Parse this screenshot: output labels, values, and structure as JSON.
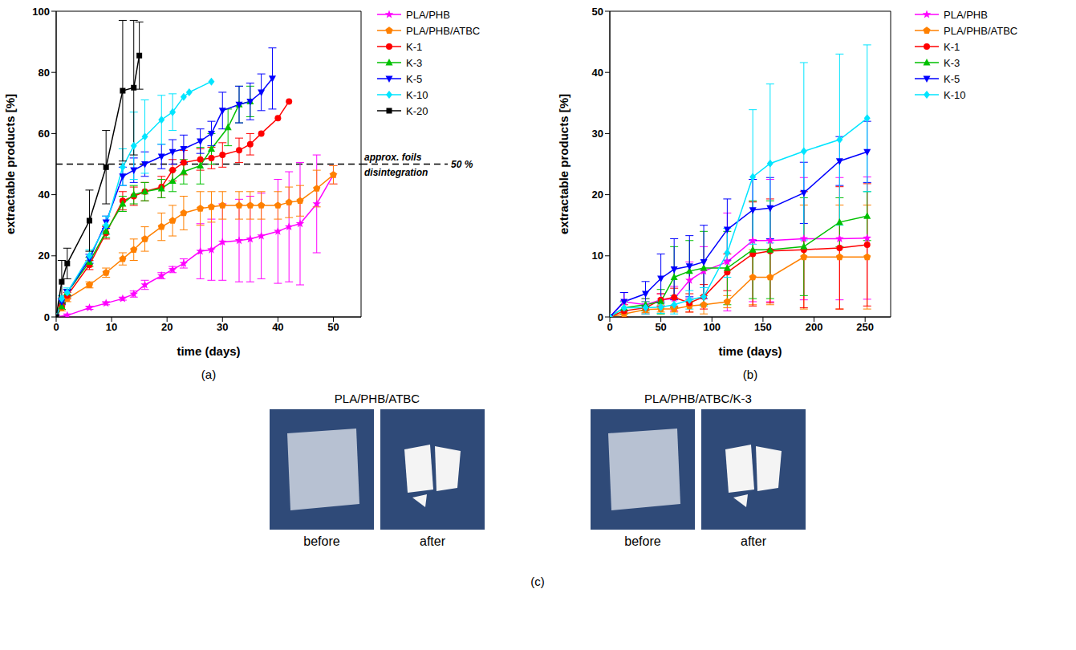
{
  "chart_data": [
    {
      "type": "line",
      "panel_label": "(a)",
      "x_label": "time (days)",
      "y_label": "extractable products [%]",
      "xlim": [
        0,
        55
      ],
      "xticks": [
        0,
        10,
        20,
        30,
        40,
        50
      ],
      "ylim": [
        0,
        100
      ],
      "yticks": [
        0,
        20,
        40,
        60,
        80,
        100
      ],
      "grid": false,
      "legend": "right",
      "reference_line": {
        "y": 50,
        "line_style": "dashed",
        "label": "approx. foils disintegration",
        "value_label": "50 %"
      },
      "series": [
        {
          "name": "PLA/PHB",
          "color": "#ff00ff",
          "marker": "star",
          "x": [
            0,
            2,
            6,
            9,
            12,
            14,
            16,
            19,
            21,
            23,
            26,
            28,
            30,
            33,
            35,
            37,
            40,
            42,
            44,
            47,
            50
          ],
          "values": [
            0,
            0.5,
            3,
            4.5,
            6,
            7.5,
            10.5,
            13.5,
            15.5,
            17.5,
            21.5,
            22,
            24.5,
            25,
            25.5,
            26.5,
            28,
            29.5,
            30.5,
            37,
            46.5
          ],
          "errors": [
            0,
            0.5,
            0.5,
            0.5,
            0.5,
            1,
            1.5,
            1,
            1,
            1.5,
            9,
            10,
            12.5,
            13.5,
            14,
            14,
            17,
            18,
            20,
            16,
            3
          ]
        },
        {
          "name": "PLA/PHB/ATBC",
          "color": "#ff8000",
          "marker": "pentagon",
          "x": [
            0,
            1,
            2,
            6,
            9,
            12,
            14,
            16,
            19,
            21,
            23,
            26,
            28,
            30,
            33,
            35,
            37,
            40,
            42,
            44,
            47,
            50
          ],
          "values": [
            0,
            3,
            6,
            10.5,
            14.5,
            19,
            22,
            25.5,
            29.5,
            31.5,
            34,
            35.5,
            36,
            36.5,
            36.5,
            36.5,
            36.5,
            36.5,
            37.5,
            38,
            42,
            46.5
          ],
          "errors": [
            0,
            1,
            1,
            1,
            1.5,
            2,
            3.5,
            4,
            4.5,
            5,
            5.5,
            5.5,
            5,
            4.5,
            4.5,
            4.5,
            4.5,
            4.5,
            5,
            5,
            6,
            3
          ]
        },
        {
          "name": "K-1",
          "color": "#ff0000",
          "marker": "circle",
          "x": [
            0,
            1,
            2,
            6,
            9,
            12,
            14,
            16,
            19,
            21,
            23,
            26,
            28,
            30,
            33,
            35,
            37,
            40,
            42
          ],
          "values": [
            0,
            3.5,
            7,
            17,
            27.5,
            38,
            39.5,
            41,
            42.5,
            48,
            50.5,
            51.5,
            52,
            53,
            54.5,
            56.5,
            60,
            65,
            70.5
          ],
          "errors": [
            0,
            1,
            1,
            1.5,
            2,
            3,
            3,
            3,
            3.5,
            3.5,
            4,
            3.5,
            3.5,
            4,
            4,
            3.5,
            0,
            0,
            0
          ]
        },
        {
          "name": "K-3",
          "color": "#00c000",
          "marker": "triangle",
          "x": [
            0,
            1,
            2,
            6,
            9,
            12,
            14,
            16,
            19,
            21,
            23,
            26,
            28,
            31,
            33,
            35
          ],
          "values": [
            0,
            3.5,
            8,
            18,
            28,
            37,
            40,
            41,
            42,
            44.5,
            47.5,
            49.5,
            55,
            62,
            69.5,
            70.5
          ],
          "errors": [
            0,
            1,
            1,
            1.5,
            2,
            2.5,
            3,
            3,
            3,
            3.5,
            4,
            6,
            5,
            6,
            6,
            5
          ]
        },
        {
          "name": "K-5",
          "color": "#0000ff",
          "marker": "triangle-down",
          "x": [
            0,
            1,
            2,
            6,
            9,
            12,
            14,
            16,
            19,
            21,
            23,
            26,
            28,
            30,
            33,
            35,
            37,
            39
          ],
          "values": [
            0,
            5,
            8,
            19,
            31,
            46,
            48,
            50,
            52.5,
            54,
            55,
            57.5,
            60,
            67.5,
            69.5,
            70.5,
            73.5,
            78
          ],
          "errors": [
            0,
            1,
            1,
            1.5,
            2,
            3,
            4,
            4,
            4,
            4,
            4.5,
            4,
            4,
            6,
            6,
            6,
            6,
            10
          ]
        },
        {
          "name": "K-10",
          "color": "#00e5ff",
          "marker": "diamond",
          "x": [
            0,
            1,
            2,
            6,
            9,
            12,
            14,
            16,
            19,
            21,
            23,
            24,
            28
          ],
          "values": [
            0,
            6,
            8,
            20,
            30,
            49,
            56,
            59,
            64.5,
            67,
            72,
            73.5,
            77
          ],
          "errors": [
            0,
            1,
            1.5,
            2,
            3,
            6,
            11,
            12,
            8,
            6,
            0,
            0,
            0
          ]
        },
        {
          "name": "K-20",
          "color": "#000000",
          "marker": "square",
          "x": [
            0,
            1,
            2,
            6,
            9,
            12,
            14,
            15
          ],
          "values": [
            0,
            11.5,
            17.5,
            31.5,
            49,
            74,
            75,
            85.5
          ],
          "errors": [
            0,
            7,
            5,
            10,
            12,
            23,
            22,
            11
          ]
        }
      ]
    },
    {
      "type": "line",
      "panel_label": "(b)",
      "x_label": "time (days)",
      "y_label": "extractable products [%]",
      "xlim": [
        0,
        275
      ],
      "xticks": [
        0,
        50,
        100,
        150,
        200,
        250
      ],
      "ylim": [
        0,
        50
      ],
      "yticks": [
        0,
        10,
        20,
        30,
        40,
        50
      ],
      "grid": false,
      "legend": "right",
      "series": [
        {
          "name": "PLA/PHB",
          "color": "#ff00ff",
          "marker": "star",
          "x": [
            0,
            14,
            35,
            50,
            63,
            78,
            92,
            115,
            140,
            157,
            190,
            225,
            252
          ],
          "values": [
            0,
            2.5,
            2,
            2.8,
            3,
            6,
            7.5,
            9,
            12.5,
            12.5,
            12.8,
            12.8,
            12.9
          ],
          "errors": [
            0,
            1.5,
            1,
            1,
            2,
            3,
            4,
            8,
            10,
            10,
            10,
            10,
            10
          ]
        },
        {
          "name": "PLA/PHB/ATBC",
          "color": "#ff8000",
          "marker": "pentagon",
          "x": [
            0,
            14,
            35,
            50,
            63,
            78,
            92,
            115,
            140,
            157,
            190,
            225,
            252
          ],
          "values": [
            0,
            0.5,
            1.2,
            1.3,
            1.3,
            1.8,
            2,
            2.5,
            6.5,
            6.5,
            9.8,
            9.8,
            9.8
          ],
          "errors": [
            0,
            0.5,
            0.5,
            0.5,
            0.5,
            1,
            1.5,
            1,
            4.5,
            4.5,
            8.5,
            8.5,
            8.5
          ]
        },
        {
          "name": "K-1",
          "color": "#ff0000",
          "marker": "circle",
          "x": [
            0,
            14,
            35,
            50,
            63,
            78,
            92,
            115,
            140,
            157,
            190,
            225,
            252
          ],
          "values": [
            0,
            1,
            1.5,
            2.8,
            3.2,
            2.3,
            3.3,
            7.3,
            10.3,
            10.8,
            11,
            11.3,
            11.8
          ],
          "errors": [
            0,
            1,
            1,
            1,
            1.5,
            1.5,
            2,
            3,
            8.5,
            8.5,
            9.5,
            10,
            10
          ]
        },
        {
          "name": "K-3",
          "color": "#00c000",
          "marker": "triangle",
          "x": [
            0,
            14,
            35,
            50,
            63,
            78,
            92,
            115,
            140,
            157,
            190,
            225,
            252
          ],
          "values": [
            0,
            1.5,
            2,
            2.5,
            6.5,
            7.5,
            8,
            8,
            11,
            11,
            11.5,
            15.5,
            16.5
          ],
          "errors": [
            0,
            1,
            1,
            2,
            5,
            5,
            6,
            6,
            8,
            8,
            8,
            4,
            4
          ]
        },
        {
          "name": "K-5",
          "color": "#0000ff",
          "marker": "triangle-down",
          "x": [
            0,
            14,
            35,
            50,
            63,
            78,
            92,
            115,
            140,
            157,
            190,
            225,
            252
          ],
          "values": [
            0,
            2.5,
            3.8,
            6.3,
            7.8,
            8.3,
            9,
            14.3,
            17.5,
            17.8,
            20.3,
            25.5,
            27
          ],
          "errors": [
            0,
            1.5,
            2,
            4,
            5,
            5,
            6,
            5,
            5,
            5,
            5,
            4,
            5
          ]
        },
        {
          "name": "K-10",
          "color": "#00e5ff",
          "marker": "diamond",
          "x": [
            0,
            14,
            35,
            50,
            63,
            78,
            92,
            115,
            140,
            157,
            190,
            225,
            252
          ],
          "values": [
            0,
            1.5,
            1.5,
            1.6,
            2,
            2.8,
            3.3,
            10.5,
            22.9,
            25.1,
            27.1,
            29,
            32.5
          ],
          "errors": [
            0,
            1,
            1,
            1,
            1.5,
            1.5,
            1.5,
            4,
            11,
            13,
            14.5,
            14,
            12
          ]
        }
      ]
    }
  ],
  "photos": {
    "panel_label": "(c)",
    "groups": [
      {
        "title": "PLA/PHB/ATBC",
        "images": [
          "before",
          "after"
        ]
      },
      {
        "title": "PLA/PHB/ATBC/K-3",
        "images": [
          "before",
          "after"
        ]
      }
    ]
  }
}
